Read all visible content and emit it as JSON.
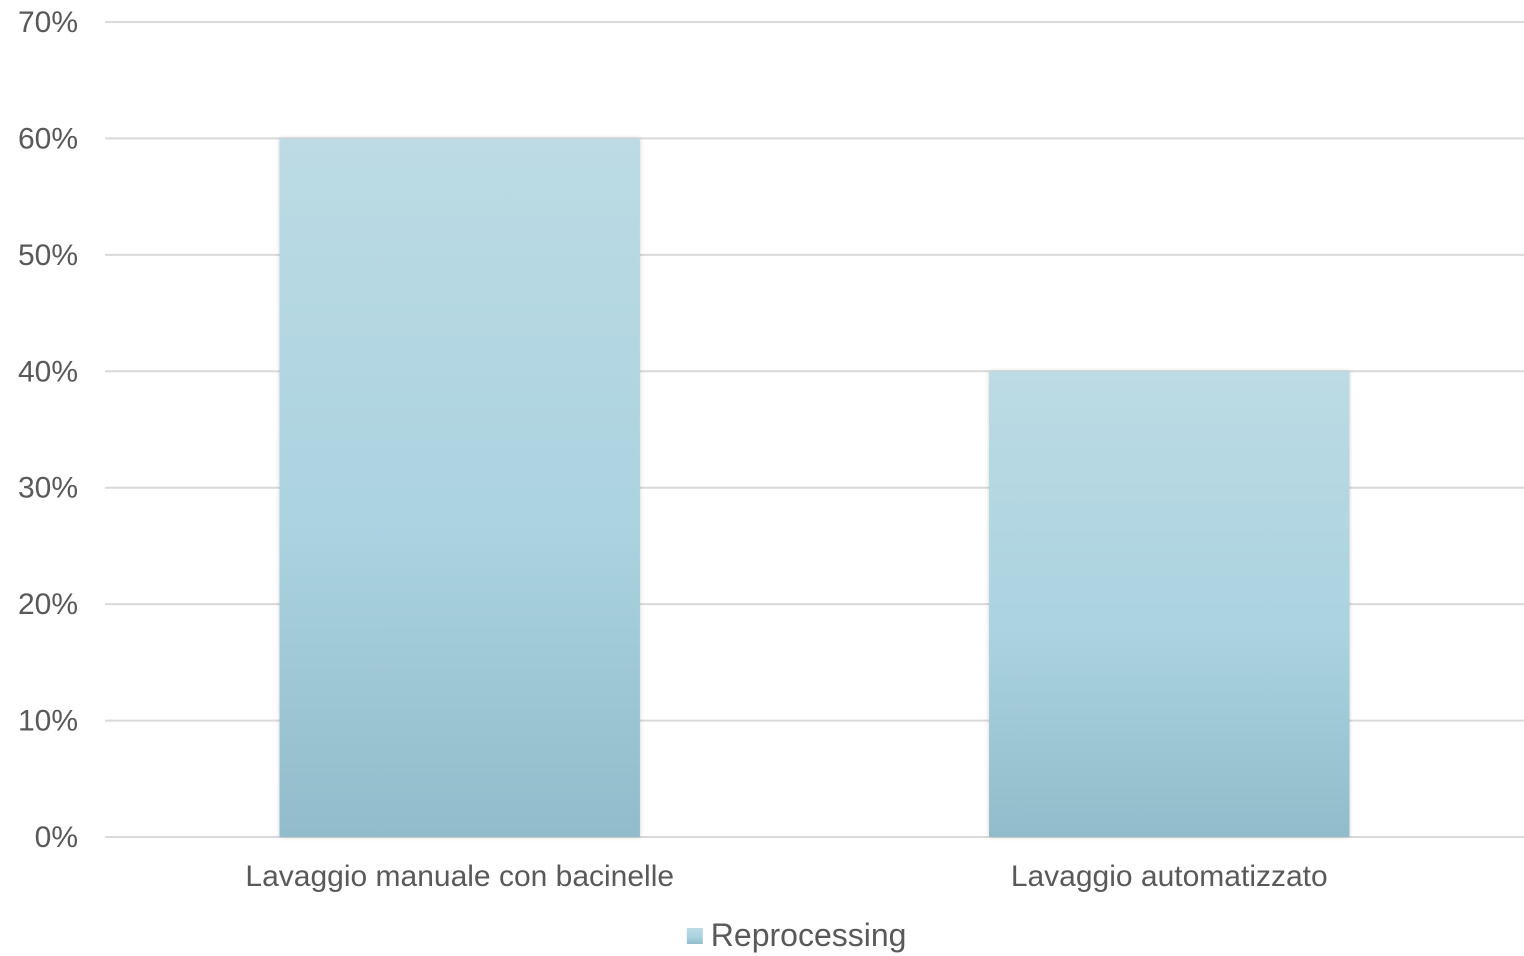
{
  "chart_data": {
    "type": "bar",
    "categories": [
      "Lavaggio manuale con bacinelle",
      "Lavaggio automatizzato"
    ],
    "series": [
      {
        "name": "Reprocessing",
        "values": [
          0.6,
          0.4
        ]
      }
    ],
    "title": "",
    "xlabel": "",
    "ylabel": "",
    "ylim": [
      0,
      0.7
    ],
    "yticks": [
      0,
      0.1,
      0.2,
      0.3,
      0.4,
      0.5,
      0.6,
      0.7
    ],
    "ytick_labels": [
      "0%",
      "10%",
      "20%",
      "30%",
      "40%",
      "50%",
      "60%",
      "70%"
    ],
    "grid": true,
    "legend": "bottom-center",
    "colors": {
      "bar_top": "#bcdbe4",
      "bar_mid": "#abd3e0",
      "bar_bottom": "#92bccb",
      "grid": "#d9d9d9",
      "text": "#595959"
    }
  }
}
